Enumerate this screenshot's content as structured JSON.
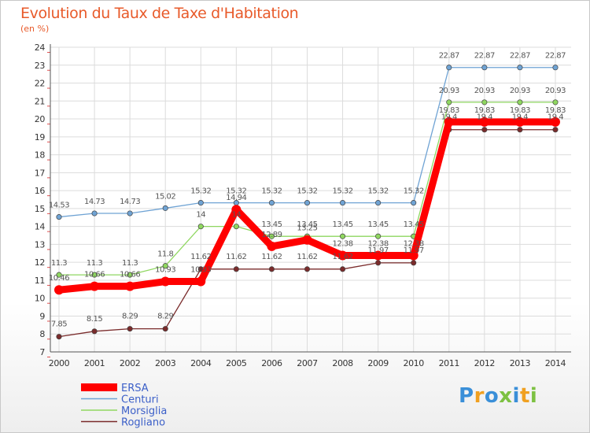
{
  "chart_data": {
    "type": "line",
    "title": "Evolution du Taux de Taxe d'Habitation",
    "subtitle": "(en %)",
    "x": [
      2000,
      2001,
      2002,
      2003,
      2004,
      2005,
      2006,
      2007,
      2008,
      2009,
      2010,
      2011,
      2012,
      2013,
      2014
    ],
    "ylim": [
      7,
      24
    ],
    "yticks": [
      7,
      8,
      9,
      10,
      11,
      12,
      13,
      14,
      15,
      16,
      17,
      18,
      19,
      20,
      21,
      22,
      23,
      24
    ],
    "grid": true,
    "legend_position": "bottom-left",
    "series": [
      {
        "name": "ERSA",
        "color": "#ff0000",
        "values": [
          10.46,
          10.66,
          10.66,
          10.93,
          10.93,
          14.94,
          12.89,
          13.25,
          12.38,
          12.38,
          12.38,
          19.83,
          19.83,
          19.83,
          19.83
        ],
        "labels": [
          "10.46",
          "10.66",
          "10.66",
          "10.93",
          "10.93",
          "14.94",
          "12.89",
          "13.25",
          "12.38",
          "12.38",
          "12.38",
          "19.83",
          "19.83",
          "19.83",
          "19.83"
        ]
      },
      {
        "name": "Centuri",
        "color": "#6fa3d4",
        "values": [
          14.53,
          14.73,
          14.73,
          15.02,
          15.32,
          15.32,
          15.32,
          15.32,
          15.32,
          15.32,
          15.32,
          22.87,
          22.87,
          22.87,
          22.87
        ],
        "labels": [
          "14.53",
          "14.73",
          "14.73",
          "15.02",
          "15.32",
          "15.32",
          "15.32",
          "15.32",
          "15.32",
          "15.32",
          "15.32",
          "22.87",
          "22.87",
          "22.87",
          "22.87"
        ]
      },
      {
        "name": "Morsiglia",
        "color": "#8fd760",
        "values": [
          11.3,
          11.3,
          11.3,
          11.8,
          14,
          14,
          13.45,
          13.45,
          13.45,
          13.45,
          13.45,
          20.93,
          20.93,
          20.93,
          20.93
        ],
        "labels": [
          "11.3",
          "11.3",
          "11.3",
          "11.8",
          "14",
          "14",
          "13.45",
          "13.45",
          "13.45",
          "13.45",
          "13.45",
          "20.93",
          "20.93",
          "20.93",
          "20.93"
        ]
      },
      {
        "name": "Rogliano",
        "color": "#7a2b2b",
        "values": [
          7.85,
          8.15,
          8.29,
          8.29,
          11.62,
          11.62,
          11.62,
          11.62,
          11.62,
          11.97,
          11.97,
          19.4,
          19.4,
          19.4,
          19.4
        ],
        "labels": [
          "7.85",
          "8.15",
          "8.29",
          "8.29",
          "11.62",
          "11.62",
          "11.62",
          "11.62",
          "11.62",
          "11.97",
          "11.97",
          "19.4",
          "19.4",
          "19.4",
          "19.4"
        ]
      }
    ]
  },
  "brand": {
    "letters": [
      "P",
      "r",
      "o",
      "x",
      "i",
      "t",
      "i"
    ],
    "colors": [
      "#3a8fd8",
      "#f0a020",
      "#3a8fd8",
      "#7dc142",
      "#3a8fd8",
      "#f0a020",
      "#7dc142"
    ]
  }
}
